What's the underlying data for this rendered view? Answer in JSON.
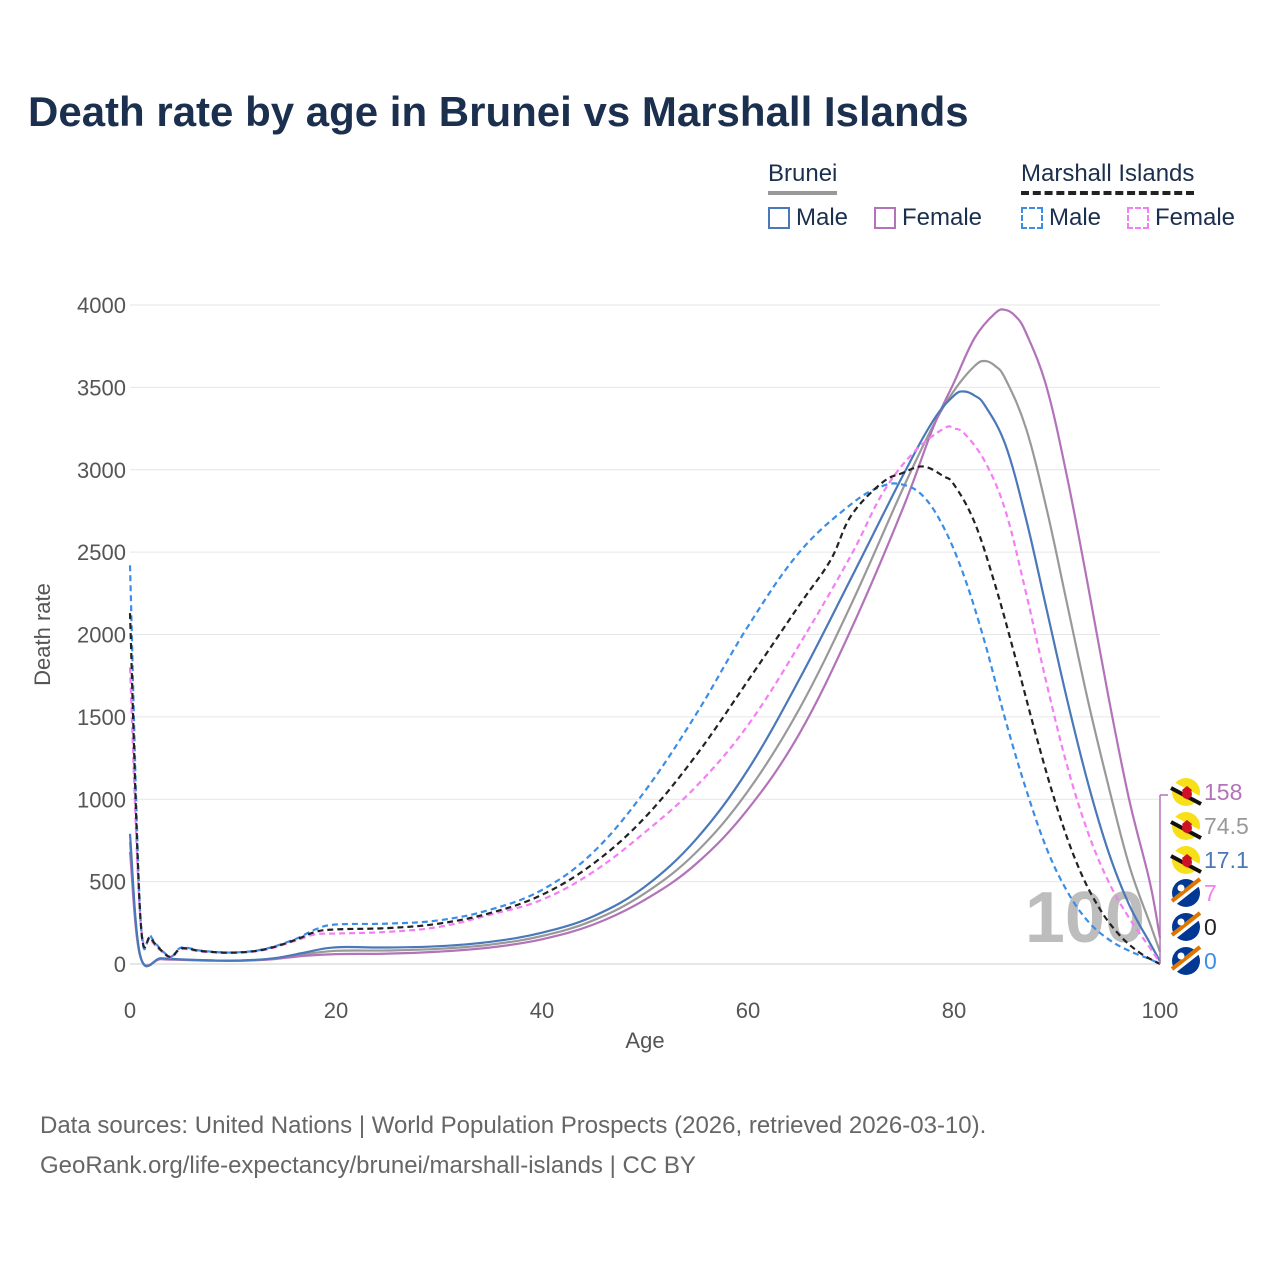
{
  "title": "Death rate by age in Brunei vs Marshall Islands",
  "legend": {
    "groups": [
      {
        "country": "Brunei",
        "underline_color": "#999999",
        "underline_style": "solid",
        "items": [
          {
            "label": "Male",
            "color": "#4a78b8",
            "dash": false
          },
          {
            "label": "Female",
            "color": "#b273b8",
            "dash": false
          }
        ]
      },
      {
        "country": "Marshall Islands",
        "underline_color": "#222222",
        "underline_style": "dashed",
        "items": [
          {
            "label": "Male",
            "color": "#3b8ee8",
            "dash": true
          },
          {
            "label": "Female",
            "color": "#f47ef4",
            "dash": true
          }
        ]
      }
    ]
  },
  "watermark": "100",
  "end_labels": [
    {
      "value": "158",
      "color": "#b273b8",
      "flag": "brunei-flag-icon"
    },
    {
      "value": "74.5",
      "color": "#999999",
      "flag": "brunei-flag-icon"
    },
    {
      "value": "17.1",
      "color": "#4a78b8",
      "flag": "brunei-flag-icon"
    },
    {
      "value": "7",
      "color": "#f47ef4",
      "flag": "marshall-islands-flag-icon"
    },
    {
      "value": "0",
      "color": "#222222",
      "flag": "marshall-islands-flag-icon"
    },
    {
      "value": "0",
      "color": "#3b8ee8",
      "flag": "marshall-islands-flag-icon"
    }
  ],
  "source_lines": [
    "Data sources: United Nations | World Population Prospects (2026, retrieved 2026-03-10).",
    "GeoRank.org/life-expectancy/brunei/marshall-islands | CC BY"
  ],
  "chart_data": {
    "type": "line",
    "title": "Death rate by age in Brunei vs Marshall Islands",
    "xlabel": "Age",
    "ylabel": "Death rate",
    "xlim": [
      0,
      100
    ],
    "ylim": [
      0,
      4000
    ],
    "xticks": [
      0,
      20,
      40,
      60,
      80,
      100
    ],
    "yticks": [
      0,
      500,
      1000,
      1500,
      2000,
      2500,
      3000,
      3500,
      4000
    ],
    "grid": true,
    "series": [
      {
        "name": "Brunei Male",
        "color": "#4a78b8",
        "dash": false,
        "points": [
          [
            0,
            790
          ],
          [
            1,
            50
          ],
          [
            3,
            35
          ],
          [
            5,
            28
          ],
          [
            8,
            22
          ],
          [
            11,
            22
          ],
          [
            14,
            35
          ],
          [
            17,
            70
          ],
          [
            19,
            95
          ],
          [
            21,
            103
          ],
          [
            25,
            100
          ],
          [
            30,
            108
          ],
          [
            35,
            135
          ],
          [
            40,
            190
          ],
          [
            45,
            290
          ],
          [
            50,
            470
          ],
          [
            55,
            760
          ],
          [
            60,
            1180
          ],
          [
            65,
            1730
          ],
          [
            70,
            2340
          ],
          [
            75,
            2960
          ],
          [
            78,
            3300
          ],
          [
            80,
            3450
          ],
          [
            81,
            3475
          ],
          [
            82,
            3450
          ],
          [
            83,
            3390
          ],
          [
            85,
            3150
          ],
          [
            87,
            2700
          ],
          [
            89,
            2150
          ],
          [
            91,
            1600
          ],
          [
            93,
            1100
          ],
          [
            95,
            680
          ],
          [
            97,
            360
          ],
          [
            99,
            130
          ],
          [
            100,
            17
          ]
        ]
      },
      {
        "name": "Brunei Female",
        "color": "#b273b8",
        "dash": false,
        "points": [
          [
            0,
            680
          ],
          [
            1,
            45
          ],
          [
            3,
            30
          ],
          [
            5,
            25
          ],
          [
            8,
            20
          ],
          [
            11,
            20
          ],
          [
            14,
            30
          ],
          [
            17,
            50
          ],
          [
            20,
            60
          ],
          [
            25,
            63
          ],
          [
            30,
            75
          ],
          [
            35,
            100
          ],
          [
            40,
            150
          ],
          [
            45,
            240
          ],
          [
            50,
            390
          ],
          [
            55,
            610
          ],
          [
            60,
            940
          ],
          [
            65,
            1400
          ],
          [
            70,
            2030
          ],
          [
            75,
            2760
          ],
          [
            78,
            3260
          ],
          [
            80,
            3530
          ],
          [
            82,
            3800
          ],
          [
            84,
            3950
          ],
          [
            85,
            3970
          ],
          [
            86,
            3930
          ],
          [
            87,
            3830
          ],
          [
            89,
            3500
          ],
          [
            91,
            2950
          ],
          [
            93,
            2300
          ],
          [
            95,
            1620
          ],
          [
            97,
            1000
          ],
          [
            99,
            500
          ],
          [
            100,
            158
          ]
        ]
      },
      {
        "name": "Brunei Total",
        "color": "#999999",
        "dash": false,
        "points": [
          [
            0,
            740
          ],
          [
            1,
            48
          ],
          [
            3,
            32
          ],
          [
            5,
            27
          ],
          [
            8,
            21
          ],
          [
            11,
            21
          ],
          [
            14,
            33
          ],
          [
            17,
            60
          ],
          [
            20,
            80
          ],
          [
            25,
            82
          ],
          [
            30,
            92
          ],
          [
            35,
            118
          ],
          [
            40,
            170
          ],
          [
            45,
            265
          ],
          [
            50,
            430
          ],
          [
            55,
            680
          ],
          [
            60,
            1050
          ],
          [
            65,
            1550
          ],
          [
            70,
            2180
          ],
          [
            75,
            2880
          ],
          [
            78,
            3270
          ],
          [
            80,
            3480
          ],
          [
            82,
            3630
          ],
          [
            83,
            3660
          ],
          [
            84,
            3630
          ],
          [
            85,
            3550
          ],
          [
            87,
            3250
          ],
          [
            89,
            2760
          ],
          [
            91,
            2180
          ],
          [
            93,
            1600
          ],
          [
            95,
            1080
          ],
          [
            97,
            600
          ],
          [
            99,
            250
          ],
          [
            100,
            74.5
          ]
        ]
      },
      {
        "name": "Marshall Islands Male",
        "color": "#3b8ee8",
        "dash": true,
        "points": [
          [
            0,
            2420
          ],
          [
            1,
            300
          ],
          [
            2,
            170
          ],
          [
            3,
            90
          ],
          [
            4,
            45
          ],
          [
            5,
            100
          ],
          [
            7,
            80
          ],
          [
            10,
            70
          ],
          [
            13,
            90
          ],
          [
            16,
            150
          ],
          [
            18,
            210
          ],
          [
            20,
            240
          ],
          [
            25,
            245
          ],
          [
            30,
            265
          ],
          [
            35,
            330
          ],
          [
            40,
            450
          ],
          [
            45,
            680
          ],
          [
            50,
            1050
          ],
          [
            55,
            1520
          ],
          [
            60,
            2050
          ],
          [
            65,
            2500
          ],
          [
            70,
            2790
          ],
          [
            73,
            2900
          ],
          [
            75,
            2910
          ],
          [
            77,
            2840
          ],
          [
            79,
            2650
          ],
          [
            81,
            2350
          ],
          [
            83,
            1950
          ],
          [
            85,
            1480
          ],
          [
            87,
            1060
          ],
          [
            89,
            700
          ],
          [
            91,
            440
          ],
          [
            93,
            260
          ],
          [
            95,
            150
          ],
          [
            97,
            80
          ],
          [
            99,
            30
          ],
          [
            100,
            0
          ]
        ]
      },
      {
        "name": "Marshall Islands Female",
        "color": "#f47ef4",
        "dash": true,
        "points": [
          [
            0,
            1800
          ],
          [
            1,
            280
          ],
          [
            2,
            150
          ],
          [
            3,
            80
          ],
          [
            4,
            40
          ],
          [
            5,
            90
          ],
          [
            7,
            75
          ],
          [
            10,
            68
          ],
          [
            13,
            85
          ],
          [
            16,
            140
          ],
          [
            18,
            180
          ],
          [
            20,
            185
          ],
          [
            25,
            195
          ],
          [
            30,
            225
          ],
          [
            35,
            300
          ],
          [
            40,
            390
          ],
          [
            45,
            560
          ],
          [
            50,
            800
          ],
          [
            55,
            1080
          ],
          [
            60,
            1450
          ],
          [
            65,
            1940
          ],
          [
            70,
            2480
          ],
          [
            73,
            2850
          ],
          [
            76,
            3100
          ],
          [
            79,
            3250
          ],
          [
            80,
            3250
          ],
          [
            81,
            3220
          ],
          [
            83,
            3050
          ],
          [
            85,
            2750
          ],
          [
            87,
            2250
          ],
          [
            89,
            1700
          ],
          [
            91,
            1200
          ],
          [
            93,
            800
          ],
          [
            95,
            500
          ],
          [
            97,
            280
          ],
          [
            99,
            100
          ],
          [
            100,
            7
          ]
        ]
      },
      {
        "name": "Marshall Islands Total",
        "color": "#222222",
        "dash": true,
        "points": [
          [
            0,
            2130
          ],
          [
            1,
            290
          ],
          [
            2,
            160
          ],
          [
            3,
            85
          ],
          [
            4,
            43
          ],
          [
            5,
            95
          ],
          [
            7,
            78
          ],
          [
            10,
            69
          ],
          [
            13,
            88
          ],
          [
            16,
            145
          ],
          [
            18,
            195
          ],
          [
            20,
            210
          ],
          [
            25,
            218
          ],
          [
            30,
            245
          ],
          [
            35,
            310
          ],
          [
            40,
            420
          ],
          [
            45,
            610
          ],
          [
            50,
            890
          ],
          [
            55,
            1270
          ],
          [
            60,
            1720
          ],
          [
            65,
            2180
          ],
          [
            68,
            2450
          ],
          [
            70,
            2720
          ],
          [
            73,
            2920
          ],
          [
            75,
            2980
          ],
          [
            77,
            3020
          ],
          [
            79,
            2960
          ],
          [
            80,
            2910
          ],
          [
            82,
            2680
          ],
          [
            84,
            2300
          ],
          [
            86,
            1850
          ],
          [
            88,
            1380
          ],
          [
            90,
            950
          ],
          [
            92,
            600
          ],
          [
            94,
            350
          ],
          [
            96,
            180
          ],
          [
            98,
            70
          ],
          [
            100,
            0
          ]
        ]
      }
    ]
  }
}
